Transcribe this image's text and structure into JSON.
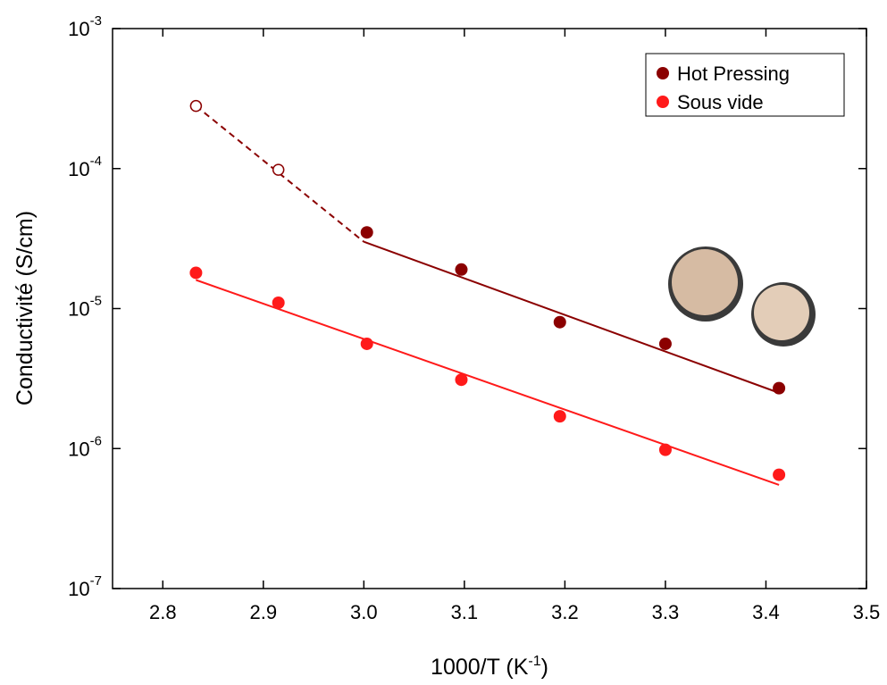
{
  "chart_data": {
    "type": "scatter",
    "log_y": true,
    "x_label": {
      "text": "1000/T (K",
      "superscript": "-1",
      "suffix": ")"
    },
    "y_label": "Conductivité (S/cm)",
    "xlim": [
      2.75,
      3.5
    ],
    "xticks": [
      {
        "value": 2.8,
        "label": "2.8"
      },
      {
        "value": 2.9,
        "label": "2.9"
      },
      {
        "value": 3.0,
        "label": "3.0"
      },
      {
        "value": 3.1,
        "label": "3.1"
      },
      {
        "value": 3.2,
        "label": "3.2"
      },
      {
        "value": 3.3,
        "label": "3.3"
      },
      {
        "value": 3.4,
        "label": "3.4"
      },
      {
        "value": 3.5,
        "label": "3.5"
      }
    ],
    "ylim": [
      1e-07,
      0.001
    ],
    "yticks": [
      {
        "value": 1e-07,
        "label": "10",
        "exponent": "-7"
      },
      {
        "value": 1e-06,
        "label": "10",
        "exponent": "-6"
      },
      {
        "value": 1e-05,
        "label": "10",
        "exponent": "-5"
      },
      {
        "value": 0.0001,
        "label": "10",
        "exponent": "-4"
      },
      {
        "value": 0.001,
        "label": "10",
        "exponent": "-3"
      }
    ],
    "legend": "upper right",
    "series": [
      {
        "name": "Hot Pressing",
        "color": "#8b0000",
        "x": [
          2.833,
          2.915,
          3.003,
          3.097,
          3.195,
          3.3,
          3.413
        ],
        "values": [
          0.00028,
          9.8e-05,
          3.5e-05,
          1.9e-05,
          8e-06,
          5.6e-06,
          2.7e-06
        ],
        "open": [
          true,
          true,
          false,
          false,
          false,
          false,
          false
        ]
      },
      {
        "name": "Sous vide",
        "color": "#ff1a1a",
        "x": [
          2.833,
          2.915,
          3.003,
          3.097,
          3.195,
          3.3,
          3.413
        ],
        "values": [
          1.8e-05,
          1.1e-05,
          5.6e-06,
          3.1e-06,
          1.7e-06,
          9.8e-07,
          6.5e-07
        ],
        "open": [
          false,
          false,
          false,
          false,
          false,
          false,
          false
        ]
      }
    ],
    "fits": [
      {
        "color": "#8b0000",
        "dashed": true,
        "x": [
          2.833,
          3.0
        ],
        "values": [
          0.00028,
          3e-05
        ]
      },
      {
        "color": "#8b0000",
        "dashed": false,
        "x": [
          3.0,
          3.413
        ],
        "values": [
          3e-05,
          2.5e-06
        ]
      },
      {
        "color": "#ff1a1a",
        "dashed": false,
        "x": [
          2.833,
          3.413
        ],
        "values": [
          1.6e-05,
          5.5e-07
        ]
      }
    ]
  }
}
